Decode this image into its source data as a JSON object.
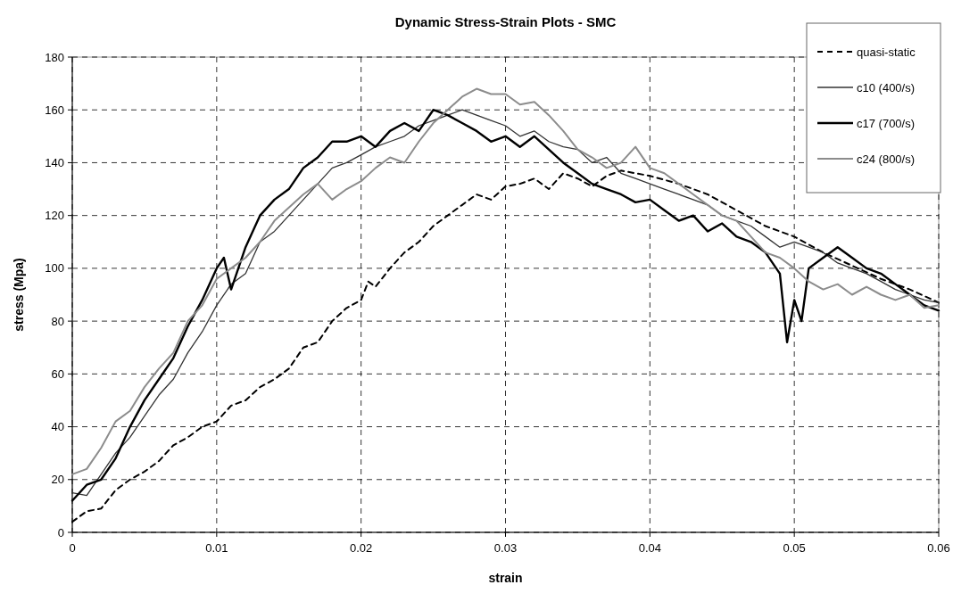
{
  "chart_data": {
    "type": "line",
    "title": "Dynamic Stress-Strain Plots - SMC",
    "xlabel": "strain",
    "ylabel": "stress (Mpa)",
    "xlim": [
      0,
      0.06
    ],
    "xticks": [
      0,
      0.01,
      0.02,
      0.03,
      0.04,
      0.05,
      0.06
    ],
    "ylim": [
      0,
      180
    ],
    "yticks": [
      0,
      20,
      40,
      60,
      80,
      100,
      120,
      140,
      160,
      180
    ],
    "grid": true,
    "legend": "top right",
    "series": [
      {
        "name": "quasi-static",
        "color": "#000000",
        "line_style": "dashed",
        "x": [
          0,
          0.001,
          0.002,
          0.003,
          0.004,
          0.005,
          0.006,
          0.007,
          0.008,
          0.009,
          0.01,
          0.011,
          0.012,
          0.013,
          0.014,
          0.015,
          0.016,
          0.017,
          0.018,
          0.019,
          0.02,
          0.0205,
          0.021,
          0.022,
          0.023,
          0.024,
          0.025,
          0.026,
          0.027,
          0.028,
          0.029,
          0.03,
          0.031,
          0.032,
          0.033,
          0.034,
          0.035,
          0.036,
          0.037,
          0.038,
          0.04,
          0.042,
          0.044,
          0.046,
          0.048,
          0.05,
          0.052,
          0.054,
          0.056,
          0.058,
          0.06
        ],
        "values": [
          4,
          8,
          9,
          16,
          20,
          23,
          27,
          33,
          36,
          40,
          42,
          48,
          50,
          55,
          58,
          62,
          70,
          72,
          80,
          85,
          88,
          95,
          93,
          100,
          106,
          110,
          116,
          120,
          124,
          128,
          126,
          131,
          132,
          134,
          130,
          136,
          134,
          131,
          135,
          137,
          135,
          132,
          128,
          122,
          116,
          112,
          106,
          101,
          96,
          92,
          87
        ]
      },
      {
        "name": "c10 (400/s)",
        "color": "#333333",
        "x": [
          0,
          0.001,
          0.002,
          0.003,
          0.004,
          0.005,
          0.006,
          0.007,
          0.008,
          0.009,
          0.01,
          0.011,
          0.012,
          0.013,
          0.014,
          0.015,
          0.016,
          0.017,
          0.018,
          0.019,
          0.02,
          0.021,
          0.022,
          0.023,
          0.024,
          0.025,
          0.026,
          0.027,
          0.028,
          0.029,
          0.03,
          0.031,
          0.032,
          0.033,
          0.034,
          0.035,
          0.036,
          0.037,
          0.038,
          0.039,
          0.04,
          0.041,
          0.042,
          0.043,
          0.044,
          0.045,
          0.046,
          0.047,
          0.048,
          0.049,
          0.05,
          0.051,
          0.052,
          0.053,
          0.054,
          0.055,
          0.056,
          0.057,
          0.058,
          0.059,
          0.06
        ],
        "values": [
          15,
          14,
          22,
          30,
          36,
          44,
          52,
          58,
          68,
          76,
          86,
          94,
          98,
          110,
          114,
          120,
          126,
          132,
          138,
          140,
          143,
          146,
          148,
          150,
          154,
          156,
          158,
          160,
          158,
          156,
          154,
          150,
          152,
          148,
          146,
          145,
          140,
          142,
          136,
          134,
          132,
          130,
          128,
          126,
          124,
          120,
          118,
          116,
          112,
          108,
          110,
          108,
          106,
          102,
          100,
          98,
          95,
          92,
          90,
          88,
          87
        ]
      },
      {
        "name": "c17 (700/s)",
        "color": "#000000",
        "x": [
          0,
          0.001,
          0.002,
          0.003,
          0.004,
          0.005,
          0.006,
          0.007,
          0.008,
          0.009,
          0.01,
          0.0105,
          0.011,
          0.012,
          0.013,
          0.014,
          0.015,
          0.016,
          0.017,
          0.018,
          0.019,
          0.02,
          0.021,
          0.022,
          0.023,
          0.024,
          0.025,
          0.026,
          0.027,
          0.028,
          0.029,
          0.03,
          0.031,
          0.032,
          0.033,
          0.034,
          0.035,
          0.036,
          0.037,
          0.038,
          0.039,
          0.04,
          0.041,
          0.042,
          0.043,
          0.044,
          0.045,
          0.046,
          0.047,
          0.048,
          0.049,
          0.0495,
          0.05,
          0.0505,
          0.051,
          0.052,
          0.053,
          0.054,
          0.055,
          0.056,
          0.057,
          0.058,
          0.059,
          0.06
        ],
        "values": [
          12,
          18,
          20,
          28,
          40,
          50,
          58,
          66,
          78,
          88,
          100,
          104,
          92,
          108,
          120,
          126,
          130,
          138,
          142,
          148,
          148,
          150,
          146,
          152,
          155,
          152,
          160,
          158,
          155,
          152,
          148,
          150,
          146,
          150,
          145,
          140,
          136,
          132,
          130,
          128,
          125,
          126,
          122,
          118,
          120,
          114,
          117,
          112,
          110,
          106,
          98,
          72,
          88,
          80,
          100,
          104,
          108,
          104,
          100,
          98,
          94,
          90,
          86,
          84
        ]
      },
      {
        "name": "c24 (800/s)",
        "color": "#8c8c8c",
        "x": [
          0,
          0.001,
          0.002,
          0.003,
          0.004,
          0.005,
          0.006,
          0.007,
          0.008,
          0.009,
          0.01,
          0.011,
          0.012,
          0.013,
          0.014,
          0.015,
          0.016,
          0.017,
          0.018,
          0.019,
          0.02,
          0.021,
          0.022,
          0.023,
          0.024,
          0.025,
          0.026,
          0.027,
          0.028,
          0.029,
          0.03,
          0.031,
          0.032,
          0.033,
          0.034,
          0.035,
          0.036,
          0.037,
          0.038,
          0.039,
          0.04,
          0.041,
          0.042,
          0.043,
          0.044,
          0.045,
          0.046,
          0.047,
          0.048,
          0.049,
          0.05,
          0.051,
          0.052,
          0.053,
          0.054,
          0.055,
          0.056,
          0.057,
          0.058,
          0.059,
          0.06
        ],
        "values": [
          22,
          24,
          32,
          42,
          46,
          55,
          62,
          68,
          80,
          86,
          96,
          100,
          104,
          110,
          118,
          123,
          128,
          132,
          126,
          130,
          133,
          138,
          142,
          140,
          148,
          155,
          160,
          165,
          168,
          166,
          166,
          162,
          163,
          158,
          152,
          145,
          142,
          138,
          140,
          146,
          138,
          136,
          132,
          128,
          124,
          120,
          118,
          112,
          106,
          104,
          100,
          95,
          92,
          94,
          90,
          93,
          90,
          88,
          90,
          85,
          86
        ]
      }
    ]
  }
}
